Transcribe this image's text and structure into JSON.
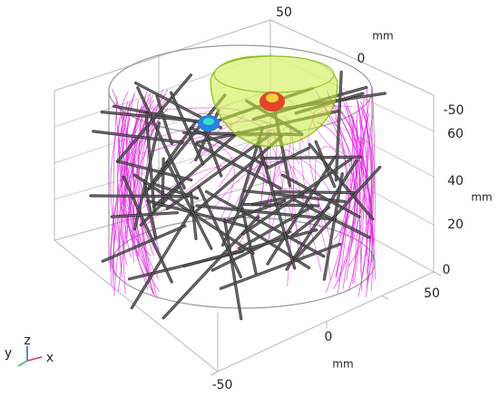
{
  "axes": {
    "y": {
      "ticks": [
        "50",
        "0",
        "-50"
      ],
      "unit": "mm"
    },
    "z": {
      "ticks": [
        "60",
        "40",
        "20",
        "0"
      ],
      "unit": "mm"
    },
    "x": {
      "ticks": [
        "50",
        "0",
        "-50"
      ],
      "unit": "mm"
    }
  },
  "triad": {
    "labels": [
      "y",
      "z",
      "x"
    ]
  }
}
